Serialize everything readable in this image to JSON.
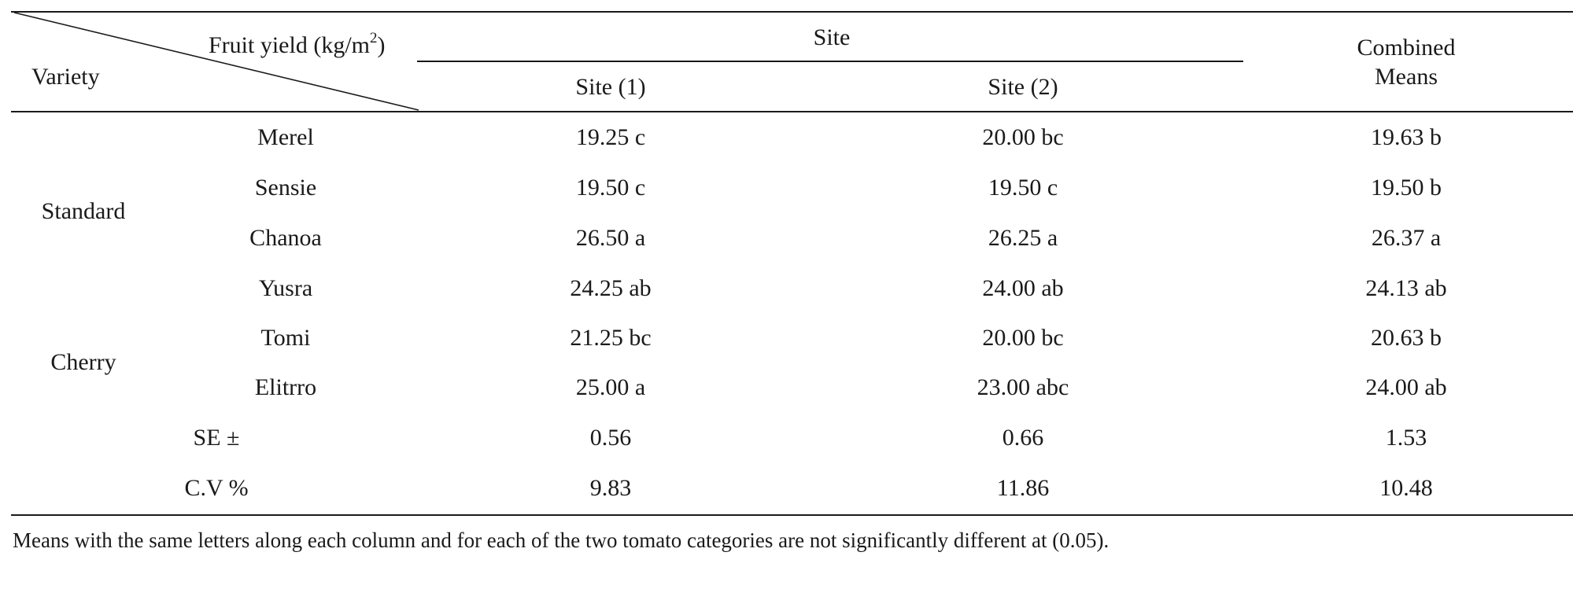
{
  "header": {
    "diagonal_label_main": "Fruit yield (kg/m",
    "diagonal_label_sup": "2",
    "diagonal_label_end": ")",
    "row_header": "Variety",
    "group_header": "Site",
    "site1": "Site (1)",
    "site2": "Site (2)",
    "combined_line1": "Combined",
    "combined_line2": "Means"
  },
  "categories": {
    "standard": "Standard",
    "cherry": "Cherry"
  },
  "rows": [
    {
      "variety": "Merel",
      "site1": "19.25 c",
      "site2": "20.00 bc",
      "combined": "19.63 b"
    },
    {
      "variety": "Sensie",
      "site1": "19.50 c",
      "site2": "19.50 c",
      "combined": "19.50 b"
    },
    {
      "variety": "Chanoa",
      "site1": "26.50 a",
      "site2": "26.25 a",
      "combined": "26.37 a"
    },
    {
      "variety": "Yusra",
      "site1": "24.25 ab",
      "site2": "24.00 ab",
      "combined": "24.13 ab"
    },
    {
      "variety": "Tomi",
      "site1": "21.25 bc",
      "site2": "20.00 bc",
      "combined": "20.63 b"
    },
    {
      "variety": "Elitrro",
      "site1": "25.00 a",
      "site2": "23.00 abc",
      "combined": "24.00 ab"
    }
  ],
  "stats": [
    {
      "label": "SE ±",
      "site1": "0.56",
      "site2": "0.66",
      "combined": "1.53"
    },
    {
      "label": "C.V %",
      "site1": "9.83",
      "site2": "11.86",
      "combined": "10.48"
    }
  ],
  "footnote": "Means with the same letters along each column and for each of the two tomato categories are not significantly different at (0.05)."
}
